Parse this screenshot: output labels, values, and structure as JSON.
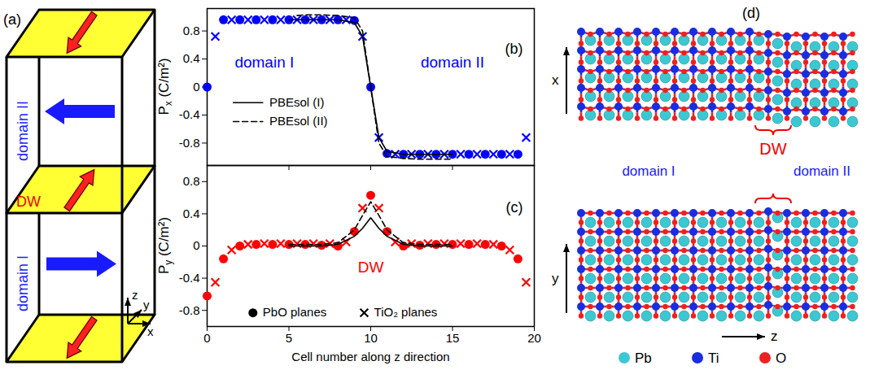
{
  "panel_a": {
    "panel_label": "(a)",
    "domain_labels": [
      "domain I",
      "domain II"
    ],
    "wall_label": "DW",
    "axes": [
      "x",
      "y",
      "z"
    ]
  },
  "chart_data": [
    {
      "type": "line",
      "panel_label": "(b)",
      "ylabel": "Px (C/m²)",
      "xlim": [
        0,
        20
      ],
      "xticks": [
        0,
        5,
        10,
        15,
        20
      ],
      "ylim": [
        -1.12,
        1.12
      ],
      "yticks": [
        -0.8,
        -0.4,
        0,
        0.4,
        0.8
      ],
      "tick_labels": "y",
      "legend": "center left",
      "annotations": [
        {
          "text": "domain I",
          "x": 3.5,
          "y": 0.35,
          "color": "#0000ff"
        },
        {
          "text": "domain II",
          "x": 15,
          "y": 0.35,
          "color": "#0000ff"
        }
      ],
      "series": [
        {
          "type": "scatter",
          "marker": "circle",
          "color": "#0000ff",
          "x": [
            0,
            1,
            2,
            3,
            4,
            5,
            6,
            7,
            8,
            9,
            10,
            11,
            12,
            13,
            14,
            15,
            16,
            17,
            18,
            19
          ],
          "values": [
            0,
            0.96,
            0.96,
            0.96,
            0.96,
            0.96,
            0.96,
            0.96,
            0.96,
            0.95,
            0,
            -0.95,
            -0.96,
            -0.96,
            -0.96,
            -0.96,
            -0.96,
            -0.96,
            -0.96,
            -0.96
          ]
        },
        {
          "type": "scatter",
          "marker": "x",
          "color": "#0000ff",
          "x": [
            0.5,
            1.5,
            2.5,
            3.5,
            4.5,
            5.5,
            6.5,
            7.5,
            8.5,
            9.5,
            10.5,
            11.5,
            12.5,
            13.5,
            14.5,
            15.5,
            16.5,
            17.5,
            18.5,
            19.5
          ],
          "values": [
            0.72,
            0.96,
            0.96,
            0.96,
            0.96,
            0.96,
            0.96,
            0.96,
            0.96,
            0.72,
            -0.72,
            -0.96,
            -0.96,
            -0.96,
            -0.96,
            -0.96,
            -0.96,
            -0.96,
            -0.96,
            -0.72
          ]
        },
        {
          "name": "PBEsol (I)",
          "type": "line",
          "line_style": "solid",
          "color": "#000000",
          "x": [
            5,
            6,
            7,
            8,
            9,
            9.5,
            10,
            10.5,
            11,
            12,
            13,
            14,
            15
          ],
          "values": [
            0.96,
            0.96,
            0.96,
            0.96,
            0.92,
            0.72,
            0,
            -0.72,
            -0.92,
            -0.96,
            -0.96,
            -0.96,
            -0.96
          ]
        },
        {
          "name": "PBEsol (II)",
          "type": "line",
          "line_style": "dashed",
          "color": "#000000",
          "x": [
            5.5,
            6,
            7,
            8,
            9,
            9.5,
            10,
            10.5,
            11,
            12,
            13,
            14,
            15
          ],
          "values": [
            1.02,
            1.03,
            1.03,
            1.02,
            0.99,
            0.8,
            0,
            -0.8,
            -0.99,
            -1.02,
            -1.03,
            -1.03,
            -1.03
          ]
        }
      ]
    },
    {
      "type": "line",
      "panel_label": "(c)",
      "xlabel": "Cell number along z direction",
      "ylabel": "Py (C/m²)",
      "xlim": [
        0,
        20
      ],
      "xticks": [
        0,
        5,
        10,
        15,
        20
      ],
      "ylim": [
        -1,
        1
      ],
      "yticks": [
        -0.8,
        -0.4,
        0,
        0.4,
        0.8
      ],
      "legend": "lower center",
      "annotations": [
        {
          "text": "DW",
          "x": 10,
          "y": -0.27,
          "color": "#ff0000"
        }
      ],
      "series": [
        {
          "name": "PbO planes",
          "type": "scatter",
          "marker": "circle",
          "color": "#ff0000",
          "x": [
            0,
            1,
            2,
            3,
            4,
            5,
            6,
            7,
            8,
            9,
            10,
            11,
            12,
            13,
            14,
            15,
            16,
            17,
            18,
            19
          ],
          "values": [
            -0.62,
            -0.16,
            0,
            0.02,
            0.02,
            0.02,
            0.02,
            0.01,
            0,
            0.18,
            0.63,
            0.18,
            0,
            0.01,
            0.02,
            0.02,
            0.02,
            0.02,
            0,
            -0.16
          ]
        },
        {
          "name": "TiO₂ planes",
          "type": "scatter",
          "marker": "x",
          "color": "#ff0000",
          "x": [
            0.5,
            1.5,
            2.5,
            3.5,
            4.5,
            5.5,
            6.5,
            7.5,
            8.5,
            9.5,
            10.5,
            11.5,
            12.5,
            13.5,
            14.5,
            15.5,
            16.5,
            17.5,
            18.5,
            19.5
          ],
          "values": [
            -0.45,
            -0.05,
            0.02,
            0.03,
            0.03,
            0.03,
            0.03,
            0.03,
            0.05,
            0.47,
            0.47,
            0.05,
            0.03,
            0.03,
            0.03,
            0.03,
            0.03,
            0.02,
            -0.05,
            -0.45
          ]
        },
        {
          "type": "line",
          "line_style": "solid",
          "color": "#000000",
          "x": [
            5,
            6,
            7,
            8,
            9,
            9.5,
            10,
            10.5,
            11,
            12,
            13,
            14,
            15
          ],
          "values": [
            0,
            0,
            0,
            0.02,
            0.12,
            0.22,
            0.35,
            0.22,
            0.12,
            0.02,
            0,
            0,
            0
          ]
        },
        {
          "type": "line",
          "line_style": "dashed",
          "color": "#000000",
          "x": [
            5,
            6,
            7,
            8,
            9,
            9.5,
            10,
            10.5,
            11,
            12,
            13,
            14,
            15
          ],
          "values": [
            0.02,
            0.02,
            0.02,
            0.04,
            0.2,
            0.38,
            0.55,
            0.38,
            0.2,
            0.04,
            0.02,
            0.02,
            0.02
          ]
        }
      ]
    }
  ],
  "panel_d": {
    "panel_label": "(d)",
    "axes": {
      "top": "x",
      "bottom": "y",
      "horizontal": "z"
    },
    "wall_label": "DW",
    "domain_labels": [
      "domain I",
      "domain II"
    ],
    "legend": [
      {
        "label": "Pb",
        "color": "#3cc8d2"
      },
      {
        "label": "Ti",
        "color": "#1a2ee0"
      },
      {
        "label": "O",
        "color": "#ee2020"
      }
    ]
  }
}
